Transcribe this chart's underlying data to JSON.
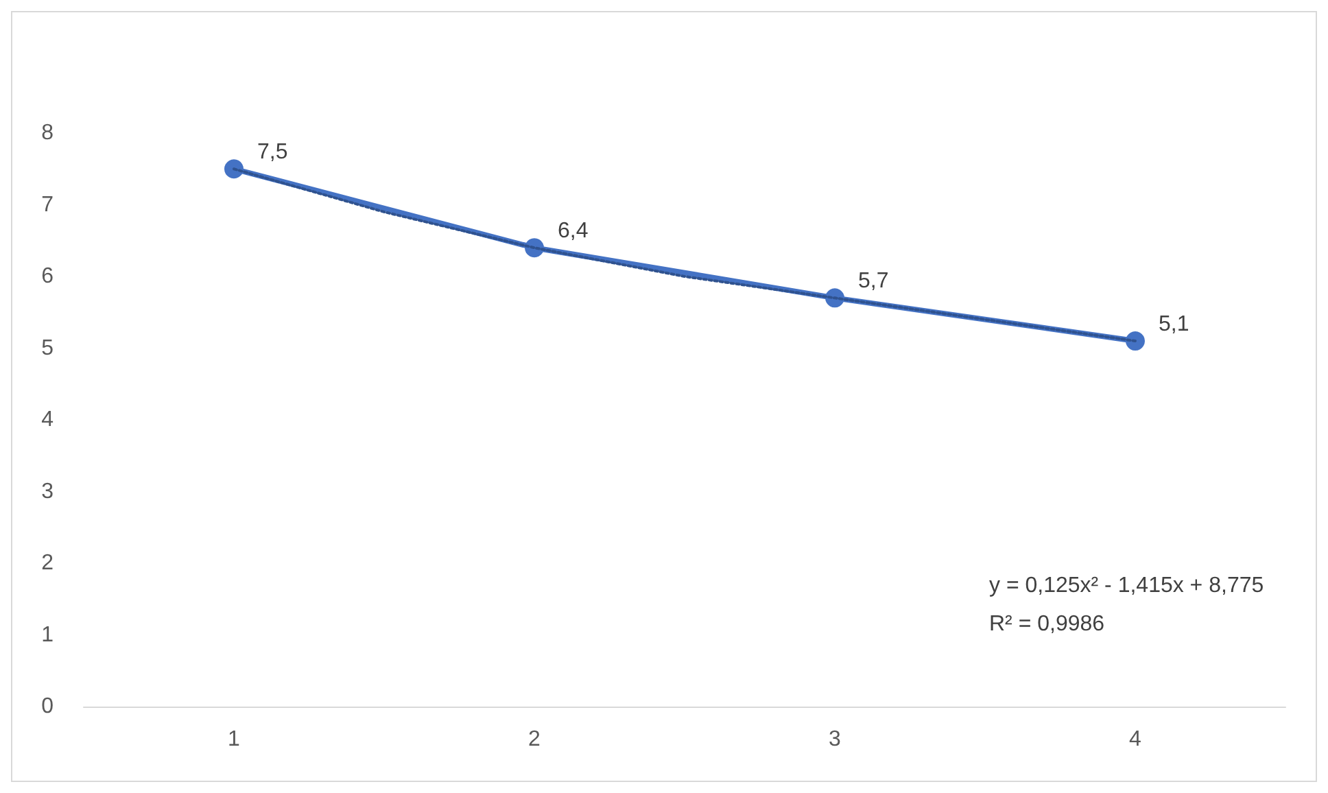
{
  "chart_data": {
    "type": "line",
    "x": [
      1,
      2,
      3,
      4
    ],
    "xlim": [
      0.5,
      4.5
    ],
    "xticks": [
      1,
      2,
      3,
      4
    ],
    "ylim": [
      0,
      8
    ],
    "yticks": [
      0,
      1,
      2,
      3,
      4,
      5,
      6,
      7,
      8
    ],
    "grid": false,
    "marker": "circle",
    "line_style": "solid",
    "series": [
      {
        "color": "#4472c4",
        "values": [
          7.5,
          6.4,
          5.7,
          5.1
        ],
        "value_labels": [
          "7,5",
          "6,4",
          "5,7",
          "5,1"
        ]
      },
      {
        "type": "line",
        "color": "#2f528f",
        "line_style": "dotted",
        "marker": "none",
        "x": [
          1,
          1.5,
          2,
          2.5,
          3,
          3.5,
          4
        ],
        "values": [
          7.5,
          6.9,
          6.4,
          6.0,
          5.7,
          5.4,
          5.1
        ]
      }
    ],
    "annotations": [
      "y = 0,125x² - 1,415x + 8,775",
      "R² = 0,9986"
    ]
  }
}
